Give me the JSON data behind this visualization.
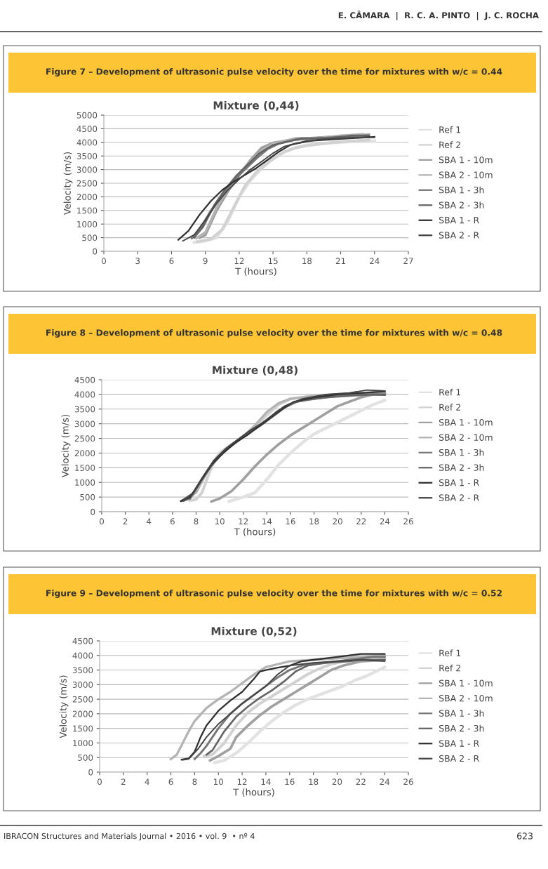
{
  "chart_data": [
    {
      "type": "line",
      "title": "Figure 7 – Development of ultrasonic pulse velocity over the time for mixtures with w/c = 0.44",
      "subtitle": "Mixture (0,44)",
      "xlabel": "T (hours)",
      "ylabel": "Velocity (m/s)",
      "xlim": [
        0,
        27
      ],
      "xticks": [
        0,
        3,
        6,
        9,
        12,
        15,
        18,
        21,
        24,
        27
      ],
      "ylim": [
        0,
        5000
      ],
      "yticks": [
        0,
        500,
        1000,
        1500,
        2000,
        2500,
        3000,
        3500,
        4000,
        4500,
        5000
      ],
      "grid": "y",
      "legend": "right",
      "annotations": [
        "E. CÂMARA  |  R. C. A. PINTO  |  J. C. ROCHA"
      ],
      "series": [
        {
          "name": "Ref 1",
          "color": "#e2e2e2",
          "x": [
            8,
            9,
            10,
            11,
            12,
            13,
            14,
            15,
            16,
            17,
            18,
            20,
            22,
            24
          ],
          "values": [
            330,
            380,
            500,
            1100,
            2000,
            2600,
            3050,
            3400,
            3650,
            3800,
            3900,
            3980,
            4030,
            4050
          ]
        },
        {
          "name": "Ref 2",
          "color": "#d2d2d2",
          "x": [
            8.3,
            9.5,
            10.5,
            11.5,
            12.5,
            13.5,
            14.5,
            16,
            17,
            18,
            20,
            22,
            23.5
          ],
          "values": [
            350,
            450,
            800,
            1600,
            2400,
            2900,
            3250,
            3650,
            3800,
            3880,
            3980,
            4050,
            4080
          ]
        },
        {
          "name": "SBA 1 - 10m",
          "color": "#a0a0a0",
          "x": [
            8.5,
            9,
            10,
            11,
            12,
            13,
            14,
            15,
            16,
            18,
            20,
            22,
            23.5
          ],
          "values": [
            500,
            600,
            1500,
            2200,
            2800,
            3350,
            3800,
            3980,
            4050,
            4150,
            4200,
            4250,
            4280
          ]
        },
        {
          "name": "SBA 2 - 10m",
          "color": "#b4b4b4",
          "x": [
            8.2,
            9,
            10,
            11,
            12,
            13,
            14,
            15,
            16,
            17,
            19,
            21,
            23
          ],
          "values": [
            480,
            700,
            1600,
            2300,
            2850,
            3300,
            3700,
            3950,
            4050,
            4150,
            4150,
            4250,
            4300
          ]
        },
        {
          "name": "SBA 1 - 3h",
          "color": "#787878",
          "x": [
            7.8,
            8.5,
            9.5,
            10.5,
            11.5,
            12.5,
            13.5,
            14.5,
            15.5,
            17,
            19,
            21,
            23.5
          ],
          "values": [
            480,
            800,
            1500,
            2100,
            2600,
            3000,
            3400,
            3750,
            3950,
            4100,
            4150,
            4200,
            4200
          ]
        },
        {
          "name": "SBA 2 - 3h",
          "color": "#646464",
          "x": [
            8,
            8.8,
            9.8,
            10.8,
            11.8,
            12.8,
            13.8,
            15,
            16,
            17.5,
            20,
            22,
            23.5
          ],
          "values": [
            500,
            900,
            1700,
            2300,
            2800,
            3200,
            3600,
            3900,
            4000,
            4150,
            4150,
            4250,
            4250
          ]
        },
        {
          "name": "SBA 1 - R",
          "color": "#303030",
          "x": [
            6.6,
            7.5,
            8.5,
            9.5,
            10.5,
            11.5,
            12.5,
            13.5,
            14.5,
            15.5,
            16.5,
            18,
            20,
            22,
            24
          ],
          "values": [
            420,
            750,
            1350,
            1850,
            2250,
            2550,
            2800,
            3050,
            3350,
            3650,
            3900,
            4050,
            4100,
            4150,
            4200
          ]
        },
        {
          "name": "SBA 2 - R",
          "color": "#444444",
          "x": [
            7,
            8,
            9,
            10,
            11,
            12,
            13,
            14,
            15,
            16,
            17,
            19,
            21,
            23,
            24
          ],
          "values": [
            380,
            600,
            1150,
            1750,
            2250,
            2650,
            3000,
            3300,
            3600,
            3850,
            3950,
            4100,
            4150,
            4180,
            4180
          ]
        }
      ]
    },
    {
      "type": "line",
      "title": "Figure 8 – Development of ultrasonic pulse velocity over the time for mixtures with w/c = 0.48",
      "subtitle": "Mixture (0,48)",
      "xlabel": "T (hours)",
      "ylabel": "Velocity (m/s)",
      "xlim": [
        0,
        26
      ],
      "xticks": [
        0,
        2,
        4,
        6,
        8,
        10,
        12,
        14,
        16,
        18,
        20,
        22,
        24,
        26
      ],
      "ylim": [
        0,
        4500
      ],
      "yticks": [
        0,
        500,
        1000,
        1500,
        2000,
        2500,
        3000,
        3500,
        4000,
        4500
      ],
      "grid": "y",
      "legend": "right",
      "series": [
        {
          "name": "Ref 1",
          "color": "#e2e2e2",
          "x": [
            10.8,
            12,
            13,
            14,
            15,
            16,
            17,
            18,
            19,
            20,
            21,
            22,
            23,
            24
          ],
          "values": [
            350,
            500,
            650,
            1100,
            1600,
            2000,
            2350,
            2650,
            2850,
            3050,
            3250,
            3450,
            3650,
            3800
          ]
        },
        {
          "name": "Ref 2",
          "color": "#d2d2d2",
          "x": [
            7.5,
            8,
            8.5,
            9,
            9.5,
            10,
            11,
            12,
            13,
            14,
            15,
            16,
            18,
            20,
            22,
            24
          ],
          "values": [
            380,
            420,
            650,
            1200,
            1700,
            2000,
            2300,
            2550,
            2850,
            3300,
            3650,
            3850,
            3950,
            4000,
            4000,
            4000
          ]
        },
        {
          "name": "SBA 1 - 10m",
          "color": "#a0a0a0",
          "x": [
            9.3,
            10,
            11,
            12,
            13,
            14,
            15,
            16,
            17,
            18,
            19,
            20,
            21,
            22,
            23,
            24
          ],
          "values": [
            350,
            450,
            700,
            1100,
            1550,
            1950,
            2300,
            2600,
            2850,
            3100,
            3350,
            3600,
            3750,
            3900,
            4000,
            4050
          ]
        },
        {
          "name": "SBA 2 - 10m",
          "color": "#b4b4b4",
          "x": [
            7,
            8,
            9,
            10,
            11,
            12,
            13,
            14,
            15,
            16,
            18,
            20,
            22,
            24
          ],
          "values": [
            380,
            650,
            1400,
            1900,
            2250,
            2550,
            2950,
            3400,
            3700,
            3850,
            3950,
            4000,
            4050,
            4100
          ]
        },
        {
          "name": "SBA 1 - 3h",
          "color": "#787878",
          "x": [
            6.8,
            7.5,
            8.5,
            9.5,
            10.5,
            11.5,
            12.5,
            13.5,
            14.5,
            15.5,
            16.5,
            18,
            20,
            22,
            24
          ],
          "values": [
            370,
            450,
            1100,
            1700,
            2100,
            2400,
            2700,
            2950,
            3250,
            3550,
            3750,
            3850,
            3950,
            4000,
            4000
          ]
        },
        {
          "name": "SBA 2 - 3h",
          "color": "#646464",
          "x": [
            6.8,
            7.8,
            8.8,
            9.8,
            10.8,
            11.8,
            12.8,
            13.8,
            14.8,
            15.8,
            17,
            19,
            21,
            23,
            24
          ],
          "values": [
            380,
            650,
            1300,
            1850,
            2200,
            2500,
            2800,
            3050,
            3400,
            3650,
            3800,
            3900,
            3950,
            4000,
            3980
          ]
        },
        {
          "name": "SBA 1 - R",
          "color": "#303030",
          "x": [
            6.7,
            7.5,
            8.3,
            9.3,
            10.3,
            11.3,
            12.3,
            13.3,
            14.3,
            15.3,
            16.3,
            18,
            20,
            22,
            24
          ],
          "values": [
            360,
            500,
            1000,
            1600,
            2000,
            2350,
            2600,
            2900,
            3200,
            3500,
            3750,
            3900,
            4000,
            4050,
            4100
          ]
        },
        {
          "name": "SBA 2 - R",
          "color": "#444444",
          "x": [
            6.9,
            7.7,
            8.5,
            9.5,
            10.5,
            11.5,
            12.5,
            13.5,
            14.5,
            15.5,
            17,
            19,
            21,
            22.5,
            24
          ],
          "values": [
            370,
            600,
            1150,
            1750,
            2150,
            2450,
            2750,
            3000,
            3300,
            3600,
            3850,
            4000,
            4050,
            4150,
            4120
          ]
        }
      ]
    },
    {
      "type": "line",
      "title": "Figure 9 – Development of ultrasonic pulse velocity over the time for mixtures with w/c = 0.52",
      "subtitle": "Mixture (0,52)",
      "xlabel": "T (hours)",
      "ylabel": "Velocity (m/s)",
      "xlim": [
        0,
        26
      ],
      "xticks": [
        0,
        2,
        4,
        6,
        8,
        10,
        12,
        14,
        16,
        18,
        20,
        22,
        24,
        26
      ],
      "ylim": [
        0,
        4500
      ],
      "yticks": [
        0,
        500,
        1000,
        1500,
        2000,
        2500,
        3000,
        3500,
        4000,
        4500
      ],
      "grid": "y",
      "legend": "right",
      "annotations": [
        "IBRACON Structures and Materials Journal • 2016 • vol. 9  • nº 4",
        "623"
      ],
      "series": [
        {
          "name": "Ref 1",
          "color": "#e2e2e2",
          "x": [
            9.7,
            10.5,
            11.5,
            12.5,
            13.5,
            14.5,
            15.5,
            16.5,
            17.5,
            18.5,
            19.5,
            20.5,
            21.5,
            22.5,
            24
          ],
          "values": [
            330,
            400,
            650,
            1000,
            1400,
            1750,
            2050,
            2300,
            2500,
            2650,
            2800,
            2950,
            3150,
            3300,
            3600
          ]
        },
        {
          "name": "Ref 2",
          "color": "#d2d2d2",
          "x": [
            8.8,
            9.5,
            10.5,
            11.5,
            12.5,
            13.5,
            14.5,
            15.5,
            16.5,
            17.5,
            18.5,
            19.5,
            21,
            22.5,
            24
          ],
          "values": [
            550,
            600,
            1000,
            1600,
            2050,
            2350,
            2600,
            2850,
            3100,
            3350,
            3550,
            3700,
            3850,
            3900,
            3950
          ]
        },
        {
          "name": "SBA 1 - 10m",
          "color": "#a0a0a0",
          "x": [
            9.3,
            10,
            11,
            11.5,
            12.5,
            13.5,
            14.5,
            15.5,
            16.5,
            17.5,
            18.5,
            19.5,
            20.5,
            22,
            24
          ],
          "values": [
            400,
            550,
            800,
            1200,
            1600,
            1950,
            2250,
            2500,
            2750,
            3000,
            3250,
            3500,
            3650,
            3800,
            3850
          ]
        },
        {
          "name": "SBA 2 - 10m",
          "color": "#b4b4b4",
          "x": [
            6,
            6.5,
            7,
            7.5,
            8,
            9,
            10,
            11,
            12,
            13,
            14,
            15,
            16,
            18,
            20,
            22,
            24
          ],
          "values": [
            450,
            600,
            1000,
            1400,
            1750,
            2200,
            2500,
            2750,
            3050,
            3350,
            3600,
            3700,
            3800,
            3850,
            3900,
            3950,
            4000
          ]
        },
        {
          "name": "SBA 1 - 3h",
          "color": "#787878",
          "x": [
            8,
            8.5,
            9,
            10,
            11,
            12,
            13,
            14,
            15,
            16,
            17,
            19,
            21,
            23,
            24
          ],
          "values": [
            450,
            650,
            900,
            1500,
            2000,
            2350,
            2650,
            2950,
            3250,
            3500,
            3650,
            3750,
            3850,
            3950,
            3950
          ]
        },
        {
          "name": "SBA 2 - 3h",
          "color": "#646464",
          "x": [
            9,
            9.5,
            10.5,
            11.5,
            12.5,
            13.5,
            14.5,
            15.5,
            16.5,
            17.5,
            19,
            21,
            22,
            24
          ],
          "values": [
            600,
            750,
            1400,
            1900,
            2250,
            2550,
            2800,
            3100,
            3450,
            3650,
            3750,
            3800,
            3850,
            3850
          ]
        },
        {
          "name": "SBA 1 - R",
          "color": "#303030",
          "x": [
            6.9,
            7.5,
            8,
            8.5,
            9,
            10,
            11,
            12,
            13,
            13.5,
            14,
            15,
            16,
            17,
            18,
            20,
            22,
            24
          ],
          "values": [
            430,
            470,
            700,
            1200,
            1600,
            2100,
            2450,
            2750,
            3200,
            3450,
            3500,
            3580,
            3650,
            3800,
            3850,
            3950,
            4050,
            4050
          ]
        },
        {
          "name": "SBA 2 - R",
          "color": "#444444",
          "x": [
            7,
            7.5,
            8.3,
            9,
            10,
            11,
            12,
            13,
            14,
            15,
            16,
            18,
            20,
            22,
            24
          ],
          "values": [
            420,
            450,
            800,
            1200,
            1650,
            2000,
            2350,
            2650,
            2950,
            3350,
            3650,
            3750,
            3800,
            3850,
            3800
          ]
        }
      ]
    }
  ]
}
